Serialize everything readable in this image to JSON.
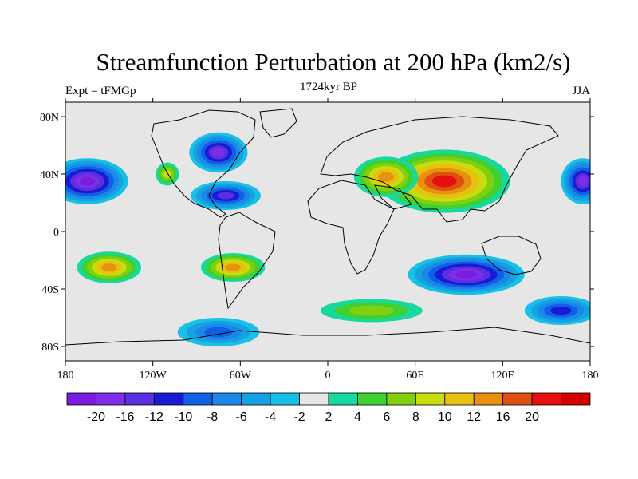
{
  "chart_data": {
    "type": "heatmap",
    "title": "Streamfunction Perturbation at 200 hPa (km2/s)",
    "left_string": "Expt = tFMGp",
    "center_string": "1724kyr BP",
    "right_string": "JJA",
    "x_ticks": [
      {
        "value": -180,
        "label": "180"
      },
      {
        "value": -120,
        "label": "120W"
      },
      {
        "value": -60,
        "label": "60W"
      },
      {
        "value": 0,
        "label": "0"
      },
      {
        "value": 60,
        "label": "60E"
      },
      {
        "value": 120,
        "label": "120E"
      },
      {
        "value": 180,
        "label": "180"
      }
    ],
    "y_ticks": [
      {
        "value": 80,
        "label": "80N"
      },
      {
        "value": 40,
        "label": "40N"
      },
      {
        "value": 0,
        "label": "0"
      },
      {
        "value": -40,
        "label": "40S"
      },
      {
        "value": -80,
        "label": "80S"
      }
    ],
    "xlim": [
      -180,
      180
    ],
    "ylim": [
      -90,
      90
    ],
    "colorbar": {
      "colors": [
        "#7a1de0",
        "#7e2ee6",
        "#5a2fe0",
        "#1a1ad6",
        "#1060e6",
        "#1a88e8",
        "#16a2e0",
        "#18c0e8",
        "#e6e6e6",
        "#16d8a0",
        "#40d030",
        "#80d010",
        "#c8dc10",
        "#e8c010",
        "#e89010",
        "#e05010",
        "#e61010",
        "#d40000"
      ],
      "labels": [
        "-20",
        "-16",
        "-12",
        "-10",
        "-8",
        "-6",
        "-4",
        "-2",
        "2",
        "4",
        "6",
        "8",
        "10",
        "12",
        "16",
        "20"
      ]
    },
    "features": [
      {
        "name": "eurasia-high",
        "lon": 80,
        "lat": 35,
        "value": 22,
        "rx": 45,
        "ry": 22
      },
      {
        "name": "west-asia-high",
        "lon": 40,
        "lat": 38,
        "value": 12,
        "rx": 22,
        "ry": 14
      },
      {
        "name": "south-pacific-high",
        "lon": -150,
        "lat": -25,
        "value": 14,
        "rx": 22,
        "ry": 11
      },
      {
        "name": "south-america-high",
        "lon": -65,
        "lat": -25,
        "value": 14,
        "rx": 22,
        "ry": 10
      },
      {
        "name": "north-atlantic-high",
        "lon": -110,
        "lat": 40,
        "value": 9,
        "rx": 8,
        "ry": 8
      },
      {
        "name": "south-atlantic-high",
        "lon": 30,
        "lat": -55,
        "value": 7,
        "rx": 35,
        "ry": 8
      },
      {
        "name": "north-pacific-low",
        "lon": -165,
        "lat": 35,
        "value": -20,
        "rx": 28,
        "ry": 16
      },
      {
        "name": "north-pacific-low-east",
        "lon": 175,
        "lat": 35,
        "value": -18,
        "rx": 15,
        "ry": 16
      },
      {
        "name": "north-america-low",
        "lon": -75,
        "lat": 55,
        "value": -16,
        "rx": 20,
        "ry": 14
      },
      {
        "name": "caribbean-low",
        "lon": -70,
        "lat": 25,
        "value": -14,
        "rx": 24,
        "ry": 10
      },
      {
        "name": "indian-ocean-low",
        "lon": 95,
        "lat": -30,
        "value": -20,
        "rx": 40,
        "ry": 14
      },
      {
        "name": "south-pacific-low",
        "lon": -75,
        "lat": -70,
        "value": -8,
        "rx": 28,
        "ry": 10
      },
      {
        "name": "southern-ocean-low",
        "lon": 160,
        "lat": -55,
        "value": -10,
        "rx": 25,
        "ry": 10
      }
    ]
  }
}
